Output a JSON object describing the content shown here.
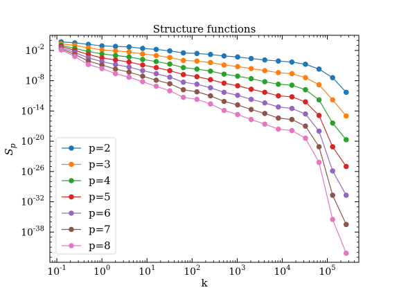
{
  "chart_data": {
    "type": "line",
    "title": "Structure functions",
    "xlabel": "k",
    "ylabel": "S_p",
    "xscale": "log",
    "yscale": "log",
    "xlim": [
      0.07,
      500000
    ],
    "ylim": [
      1e-44,
      10.0
    ],
    "x_ticks": [
      {
        "value": 0.1,
        "label": "10^-1"
      },
      {
        "value": 1,
        "label": "10^0"
      },
      {
        "value": 10,
        "label": "10^1"
      },
      {
        "value": 100,
        "label": "10^2"
      },
      {
        "value": 1000,
        "label": "10^3"
      },
      {
        "value": 10000,
        "label": "10^4"
      },
      {
        "value": 100000,
        "label": "10^5"
      }
    ],
    "y_ticks": [
      {
        "value": 0.01,
        "label": "10^-2"
      },
      {
        "value": 1e-08,
        "label": "10^-8"
      },
      {
        "value": 1e-14,
        "label": "10^-14"
      },
      {
        "value": 1e-20,
        "label": "10^-20"
      },
      {
        "value": 1e-26,
        "label": "10^-26"
      },
      {
        "value": 1e-32,
        "label": "10^-32"
      },
      {
        "value": 1e-38,
        "label": "10^-38"
      }
    ],
    "x": [
      0.125,
      0.25,
      0.5,
      1,
      2,
      4,
      8,
      16,
      32,
      64,
      128,
      256,
      512,
      1024,
      2048,
      4096,
      8192,
      16384,
      32768,
      65536,
      131072,
      262144
    ],
    "series": [
      {
        "name": "p=2",
        "color": "#1f77b4",
        "values": [
          0.5,
          0.32,
          0.16,
          0.08,
          0.063,
          0.05,
          0.025,
          0.016,
          0.008,
          0.0032,
          0.0025,
          0.0016,
          0.0008,
          0.0005,
          0.00025,
          0.00013,
          7.9e-05,
          5e-05,
          1.8e-05,
          2e-06,
          4e-08,
          5e-11
        ]
      },
      {
        "name": "p=3",
        "color": "#ff7f0e",
        "values": [
          0.2,
          0.1,
          0.032,
          0.013,
          0.0079,
          0.005,
          0.002,
          0.001,
          0.0004,
          0.0001,
          7.9e-05,
          4e-05,
          1.3e-05,
          6.3e-06,
          2.5e-06,
          1e-06,
          4e-07,
          2.5e-07,
          4e-08,
          1.6e-09,
          1.6e-12,
          1e-15
        ]
      },
      {
        "name": "p=4",
        "color": "#2ca02c",
        "values": [
          0.1,
          0.025,
          0.0063,
          0.002,
          0.001,
          0.0005,
          0.00016,
          6.3e-05,
          2e-05,
          4e-06,
          2e-06,
          7.9e-07,
          2e-07,
          7.9e-08,
          2.5e-08,
          6.3e-09,
          2e-09,
          1.3e-09,
          1.6e-10,
          1.6e-12,
          4e-17,
          2e-20
        ]
      },
      {
        "name": "p=5",
        "color": "#d62728",
        "values": [
          0.063,
          0.01,
          0.0016,
          0.00032,
          0.00013,
          5e-05,
          1.3e-05,
          4e-06,
          1e-06,
          1.6e-07,
          6.3e-08,
          1.6e-08,
          3.2e-09,
          1e-09,
          2e-10,
          5e-11,
          1e-11,
          6.3e-12,
          6.3e-13,
          1.3e-15,
          7.9e-22,
          1e-25
        ]
      },
      {
        "name": "p=6",
        "color": "#9467bd",
        "values": [
          0.032,
          0.004,
          0.00032,
          6.3e-05,
          1.6e-05,
          5e-06,
          1e-06,
          2.5e-07,
          5e-08,
          5e-09,
          2e-09,
          4e-10,
          5e-11,
          1.3e-11,
          2e-12,
          4e-13,
          6.3e-14,
          3.2e-14,
          2.5e-15,
          1e-18,
          1.3e-26,
          2e-31
        ]
      },
      {
        "name": "p=7",
        "color": "#8c564b",
        "values": [
          0.02,
          0.0016,
          7.9e-05,
          1.3e-05,
          2e-06,
          5e-07,
          7.9e-08,
          1.3e-08,
          2.5e-09,
          1.6e-10,
          6.3e-11,
          1e-11,
          7.9e-13,
          1.6e-13,
          2e-14,
          3.2e-15,
          4e-16,
          2e-16,
          1e-17,
          7.9e-22,
          2e-31,
          3.2e-37
        ]
      },
      {
        "name": "p=8",
        "color": "#e377c2",
        "values": [
          0.013,
          0.00063,
          1.6e-05,
          2.5e-06,
          2.5e-07,
          5e-08,
          6.3e-09,
          7.9e-10,
          1e-10,
          5e-12,
          2e-12,
          2.5e-13,
          1.3e-14,
          2e-15,
          2e-16,
          2.5e-17,
          2.5e-18,
          1.3e-18,
          4e-20,
          6.3e-25,
          3.2e-36,
          6.3e-43
        ]
      }
    ],
    "legend_position": "lower-left",
    "grid": false
  }
}
